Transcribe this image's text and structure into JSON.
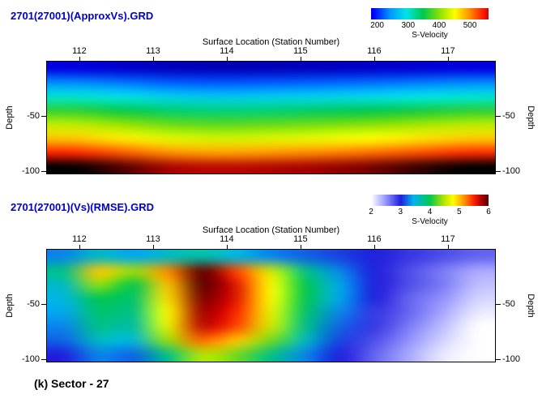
{
  "page": {
    "background": "#ffffff",
    "caption": "(k) Sector - 27",
    "title_color": "#0000c8"
  },
  "chart_data": [
    {
      "type": "heatmap",
      "title": "2701(27001)(ApproxVs).GRD",
      "xlabel": "Surface Location (Station Number)",
      "ylabel_left": "Depth",
      "ylabel_right": "Depth",
      "colorbar_label": "S-Velocity",
      "colorbar_ticks": [
        200,
        300,
        400,
        500
      ],
      "colorbar_value_range": [
        180,
        560
      ],
      "x_ticks": [
        112,
        113,
        114,
        115,
        116,
        117
      ],
      "x_range": [
        111.55,
        117.65
      ],
      "y_ticks": [
        -50,
        -100
      ],
      "y_range": [
        0,
        -103
      ],
      "value_range": [
        150,
        600
      ],
      "colormap": [
        [
          0,
          "#000082"
        ],
        [
          0.08,
          "#0000ff"
        ],
        [
          0.2,
          "#0096ff"
        ],
        [
          0.32,
          "#00e6e6"
        ],
        [
          0.44,
          "#00c850"
        ],
        [
          0.57,
          "#96e400"
        ],
        [
          0.67,
          "#ffff00"
        ],
        [
          0.78,
          "#ff8c00"
        ],
        [
          0.87,
          "#ff1e00"
        ],
        [
          0.95,
          "#960000"
        ],
        [
          1,
          "#000000"
        ]
      ],
      "grid_stations": [
        111.5,
        112.25,
        113,
        113.75,
        114.5,
        115.25,
        116,
        116.75,
        117.5
      ],
      "grid_depths": [
        0,
        -15,
        -30,
        -45,
        -60,
        -75,
        -90,
        -108
      ],
      "grid": [
        [
          177,
          172,
          167,
          165,
          166,
          168,
          171,
          174,
          177
        ],
        [
          237,
          229,
          220,
          217,
          219,
          222,
          226,
          231,
          236
        ],
        [
          302,
          291,
          278,
          274,
          277,
          281,
          286,
          293,
          300
        ],
        [
          367,
          352,
          336,
          331,
          334,
          340,
          347,
          356,
          365
        ],
        [
          424,
          408,
          390,
          384,
          388,
          394,
          402,
          412,
          422
        ],
        [
          476,
          459,
          439,
          432,
          437,
          443,
          452,
          463,
          474
        ],
        [
          539,
          520,
          498,
          491,
          496,
          503,
          512,
          524,
          536
        ],
        [
          600,
          588,
          570,
          564,
          568,
          574,
          582,
          592,
          600
        ]
      ]
    },
    {
      "type": "heatmap",
      "title": "2701(27001)(Vs)(RMSE).GRD",
      "xlabel": "Surface Location (Station Number)",
      "ylabel_left": "Depth",
      "ylabel_right": "Depth",
      "colorbar_label": "S-Velocity",
      "colorbar_ticks": [
        2,
        3,
        4,
        5,
        6
      ],
      "colorbar_value_range": [
        2,
        6
      ],
      "x_ticks": [
        112,
        113,
        114,
        115,
        116,
        117
      ],
      "x_range": [
        111.55,
        117.65
      ],
      "y_ticks": [
        -50,
        -100
      ],
      "y_range": [
        0,
        -103
      ],
      "value_range": [
        2,
        6
      ],
      "colormap": [
        [
          0,
          "#ffffff"
        ],
        [
          0.12,
          "#9898ff"
        ],
        [
          0.25,
          "#2020dd"
        ],
        [
          0.36,
          "#00b4f0"
        ],
        [
          0.5,
          "#00c850"
        ],
        [
          0.62,
          "#b4e400"
        ],
        [
          0.7,
          "#ffff00"
        ],
        [
          0.8,
          "#ff8c00"
        ],
        [
          0.88,
          "#ff1e00"
        ],
        [
          0.95,
          "#a00000"
        ],
        [
          1,
          "#5a0000"
        ]
      ],
      "grid_stations": [
        111.5,
        112,
        112.5,
        113,
        113.5,
        114,
        114.5,
        115,
        115.5,
        116,
        116.5,
        117,
        117.5
      ],
      "grid_depths": [
        0,
        -15,
        -30,
        -45,
        -60,
        -75,
        -90,
        -108
      ],
      "grid": [
        [
          3.3,
          3.6,
          3.4,
          3.6,
          3.7,
          3.5,
          3.3,
          3.2,
          3.1,
          3.0,
          2.9,
          2.8,
          2.7
        ],
        [
          3.8,
          5.0,
          4.4,
          5.2,
          6.0,
          5.4,
          4.6,
          3.8,
          3.3,
          3.0,
          2.8,
          2.6,
          2.4
        ],
        [
          3.6,
          4.4,
          4.0,
          5.0,
          6.0,
          5.6,
          4.8,
          4.0,
          3.4,
          3.0,
          2.8,
          2.6,
          2.3
        ],
        [
          3.5,
          4.0,
          3.9,
          4.9,
          5.9,
          5.6,
          4.8,
          4.0,
          3.4,
          3.0,
          2.7,
          2.5,
          2.2
        ],
        [
          3.4,
          3.9,
          3.8,
          4.8,
          5.8,
          5.5,
          4.7,
          3.9,
          3.3,
          2.9,
          2.7,
          2.4,
          2.1
        ],
        [
          3.3,
          3.8,
          3.7,
          4.7,
          5.7,
          5.4,
          4.6,
          3.8,
          3.2,
          2.9,
          2.6,
          2.3,
          2.0
        ],
        [
          3.2,
          3.6,
          3.5,
          4.4,
          5.3,
          5.0,
          4.3,
          3.6,
          3.1,
          2.8,
          2.5,
          2.2,
          2.0
        ],
        [
          3.0,
          3.3,
          3.2,
          3.8,
          4.5,
          4.3,
          3.8,
          3.3,
          3.0,
          2.7,
          2.4,
          2.1,
          2.0
        ]
      ]
    }
  ]
}
